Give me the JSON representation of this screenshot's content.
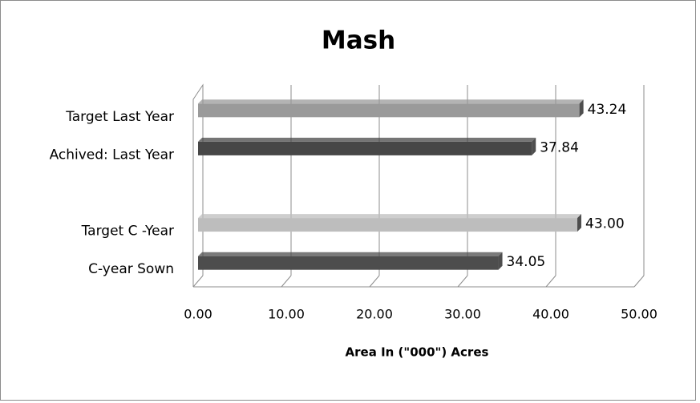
{
  "chart_data": {
    "type": "bar",
    "orientation": "horizontal",
    "title": "Mash",
    "xlabel": "Area In (\"000\") Acres",
    "categories": [
      "Target  Last Year",
      "Achived: Last Year",
      null,
      "Target  C -Year",
      "C-year Sown"
    ],
    "values": [
      43.24,
      37.84,
      null,
      43.0,
      34.05
    ],
    "value_labels": [
      "43.24",
      "37.84",
      null,
      "43.00",
      "34.05"
    ],
    "colors": [
      "#9a9a9a",
      "#474747",
      null,
      "#bdbdbd",
      "#4d4d4d"
    ],
    "xlim": [
      0,
      50
    ],
    "xticks": [
      {
        "value": 0,
        "label": "0.00"
      },
      {
        "value": 10,
        "label": "10.00"
      },
      {
        "value": 20,
        "label": "20.00"
      },
      {
        "value": 30,
        "label": "30.00"
      },
      {
        "value": 40,
        "label": "40.00"
      },
      {
        "value": 50,
        "label": "50.00"
      }
    ],
    "grid": true
  }
}
